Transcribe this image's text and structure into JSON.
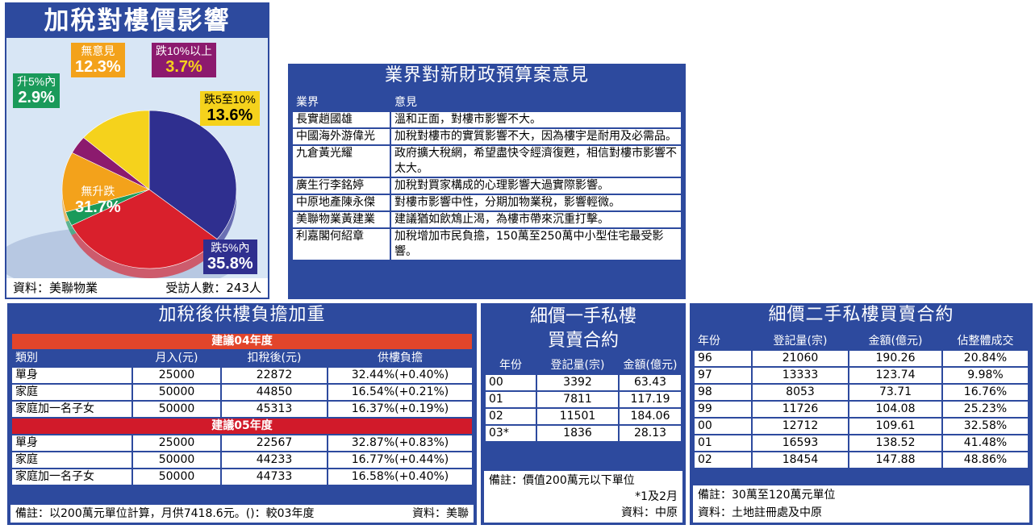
{
  "pie": {
    "title": "加稅對樓價影響",
    "source": "資料：美聯物業",
    "respondents": "受訪人數：243人"
  },
  "chart_data": {
    "type": "pie",
    "title": "加稅對樓價影響",
    "slices": [
      {
        "label": "跌5%內",
        "value": 35.8,
        "display": "35.8%",
        "color": "#2f2f8f"
      },
      {
        "label": "無升跌",
        "value": 31.7,
        "display": "31.7%",
        "color": "#d9202c"
      },
      {
        "label": "升5%內",
        "value": 2.9,
        "display": "2.9%",
        "color": "#1a9a5a"
      },
      {
        "label": "無意見",
        "value": 12.3,
        "display": "12.3%",
        "color": "#f3a21b"
      },
      {
        "label": "跌10%以上",
        "value": 3.7,
        "display": "3.7%",
        "color": "#8c1a6e"
      },
      {
        "label": "跌5至10%",
        "value": 13.6,
        "display": "13.6%",
        "color": "#f5d21c"
      }
    ]
  },
  "opinions": {
    "title": "業界對新財政預算案意見",
    "headers": [
      "業界",
      "意見"
    ],
    "rows": [
      [
        "長實趙國雄",
        "溫和正面，對樓市影響不大。"
      ],
      [
        "中國海外游偉光",
        "加稅對樓市的實質影響不大，因為樓宇是耐用及必需品。"
      ],
      [
        "九倉黃光耀",
        "政府擴大稅網，希望盡快令經濟復甦，相信對樓市影響不太大。"
      ],
      [
        "廣生行李銘婷",
        "加稅對買家構成的心理影響大過實際影響。"
      ],
      [
        "中原地產陳永傑",
        "對樓市影響中性，分期加物業稅，影響輕微。"
      ],
      [
        "美聯物業黃建業",
        "建議猶如飲鴆止渴，為樓市帶來沉重打擊。"
      ],
      [
        "利嘉閣何紹章",
        "加稅增加市民負擔，150萬至250萬中小型住宅最受影響。"
      ]
    ]
  },
  "burden": {
    "title": "加稅後供樓負擔加重",
    "year1": "建議04年度",
    "year2": "建議05年度",
    "headers": [
      "類別",
      "月入(元)",
      "扣稅後(元)",
      "供樓負擔"
    ],
    "rows1": [
      [
        "單身",
        "25000",
        "22872",
        "32.44%(+0.40%)"
      ],
      [
        "家庭",
        "50000",
        "44850",
        "16.54%(+0.21%)"
      ],
      [
        "家庭加一名子女",
        "50000",
        "45313",
        "16.37%(+0.19%)"
      ]
    ],
    "rows2": [
      [
        "單身",
        "25000",
        "22567",
        "32.87%(+0.83%)"
      ],
      [
        "家庭",
        "50000",
        "44233",
        "16.77%(+0.44%)"
      ],
      [
        "家庭加一名子女",
        "50000",
        "44733",
        "16.58%(+0.40%)"
      ]
    ],
    "note": "備註：以200萬元單位計算，月供7418.6元。()：較03年度",
    "source": "資料：美聯"
  },
  "firsthand": {
    "title1": "細價一手私樓",
    "title2": "買賣合約",
    "headers": [
      "年份",
      "登記量(宗)",
      "金額(億元)"
    ],
    "rows": [
      [
        "00",
        "3392",
        "63.43"
      ],
      [
        "01",
        "7811",
        "117.19"
      ],
      [
        "02",
        "11501",
        "184.06"
      ],
      [
        "03*",
        "1836",
        "28.13"
      ]
    ],
    "note": "備註：價值200萬元以下單位",
    "footnote": "*1及2月",
    "source": "資料：中原"
  },
  "secondhand": {
    "title": "細價二手私樓買賣合約",
    "headers": [
      "年份",
      "登記量(宗)",
      "金額(億元)",
      "佔整體成交"
    ],
    "rows": [
      [
        "96",
        "21060",
        "190.26",
        "20.84%"
      ],
      [
        "97",
        "13333",
        "123.74",
        "9.98%"
      ],
      [
        "98",
        "8053",
        "73.71",
        "16.76%"
      ],
      [
        "99",
        "11726",
        "104.08",
        "25.23%"
      ],
      [
        "00",
        "12712",
        "109.61",
        "32.58%"
      ],
      [
        "01",
        "16593",
        "138.52",
        "41.48%"
      ],
      [
        "02",
        "18454",
        "147.88",
        "48.86%"
      ]
    ],
    "note": "備註：30萬至120萬元單位",
    "source": "資料：土地註冊處及中原"
  }
}
